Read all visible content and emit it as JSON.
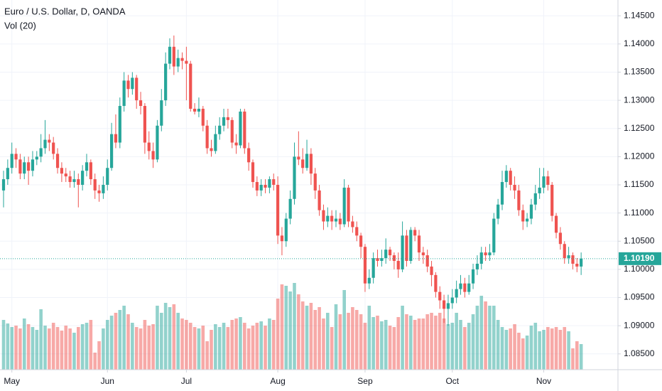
{
  "chart_data": {
    "type": "candlestick",
    "title": "Euro / U.S. Dollar, D, OANDA",
    "indicator": "Vol (20)",
    "up_color": "#26a69a",
    "down_color": "#ef5350",
    "ylim": [
      1.0822,
      1.1478
    ],
    "yticks": [
      {
        "value": 1.145,
        "label": "1.14500"
      },
      {
        "value": 1.14,
        "label": "1.14000"
      },
      {
        "value": 1.135,
        "label": "1.13500"
      },
      {
        "value": 1.13,
        "label": "1.13000"
      },
      {
        "value": 1.125,
        "label": "1.12500"
      },
      {
        "value": 1.12,
        "label": "1.12000"
      },
      {
        "value": 1.115,
        "label": "1.11500"
      },
      {
        "value": 1.11,
        "label": "1.11000"
      },
      {
        "value": 1.105,
        "label": "1.10500"
      },
      {
        "value": 1.1,
        "label": "1.10000"
      },
      {
        "value": 1.095,
        "label": "1.09500"
      },
      {
        "value": 1.09,
        "label": "1.09000"
      },
      {
        "value": 1.085,
        "label": "1.08500"
      }
    ],
    "xticks": [
      {
        "value": 2,
        "label": "May"
      },
      {
        "value": 25,
        "label": "Jun"
      },
      {
        "value": 44,
        "label": "Jul"
      },
      {
        "value": 66,
        "label": "Aug"
      },
      {
        "value": 87,
        "label": "Sep"
      },
      {
        "value": 108,
        "label": "Oct"
      },
      {
        "value": 130,
        "label": "Nov"
      }
    ],
    "grid": true,
    "last_price": {
      "value": 1.1019,
      "label": "1.10190"
    },
    "volume_lim": [
      0,
      130
    ],
    "ohlc": [
      [
        1.114,
        1.1175,
        1.111,
        1.116
      ],
      [
        1.116,
        1.1195,
        1.115,
        1.118
      ],
      [
        1.118,
        1.1225,
        1.117,
        1.1205
      ],
      [
        1.1205,
        1.1215,
        1.118,
        1.1195
      ],
      [
        1.1195,
        1.1205,
        1.116,
        1.117
      ],
      [
        1.117,
        1.12,
        1.116,
        1.119
      ],
      [
        1.119,
        1.12,
        1.115,
        1.1175
      ],
      [
        1.1175,
        1.121,
        1.1165,
        1.1195
      ],
      [
        1.1195,
        1.121,
        1.1185,
        1.12
      ],
      [
        1.12,
        1.124,
        1.119,
        1.1215
      ],
      [
        1.1215,
        1.1265,
        1.1205,
        1.123
      ],
      [
        1.123,
        1.124,
        1.121,
        1.1225
      ],
      [
        1.1225,
        1.1235,
        1.1195,
        1.1205
      ],
      [
        1.1205,
        1.1215,
        1.117,
        1.118
      ],
      [
        1.118,
        1.119,
        1.1155,
        1.117
      ],
      [
        1.117,
        1.118,
        1.1155,
        1.1165
      ],
      [
        1.1165,
        1.1175,
        1.1145,
        1.1155
      ],
      [
        1.1155,
        1.1175,
        1.1145,
        1.116
      ],
      [
        1.116,
        1.117,
        1.111,
        1.115
      ],
      [
        1.115,
        1.1185,
        1.114,
        1.1175
      ],
      [
        1.1175,
        1.1205,
        1.1165,
        1.119
      ],
      [
        1.119,
        1.1195,
        1.115,
        1.116
      ],
      [
        1.116,
        1.117,
        1.1125,
        1.114
      ],
      [
        1.114,
        1.115,
        1.112,
        1.1135
      ],
      [
        1.1135,
        1.1165,
        1.1125,
        1.115
      ],
      [
        1.115,
        1.1195,
        1.114,
        1.118
      ],
      [
        1.118,
        1.126,
        1.1175,
        1.124
      ],
      [
        1.124,
        1.1275,
        1.1215,
        1.1225
      ],
      [
        1.1225,
        1.1305,
        1.1215,
        1.129
      ],
      [
        1.129,
        1.135,
        1.128,
        1.1335
      ],
      [
        1.1335,
        1.1345,
        1.1305,
        1.132
      ],
      [
        1.132,
        1.135,
        1.131,
        1.134
      ],
      [
        1.134,
        1.1345,
        1.1285,
        1.13
      ],
      [
        1.13,
        1.1315,
        1.1275,
        1.129
      ],
      [
        1.129,
        1.1295,
        1.1205,
        1.1225
      ],
      [
        1.1225,
        1.1245,
        1.1195,
        1.121
      ],
      [
        1.121,
        1.1225,
        1.118,
        1.1195
      ],
      [
        1.1195,
        1.1265,
        1.119,
        1.1255
      ],
      [
        1.1255,
        1.132,
        1.1245,
        1.13
      ],
      [
        1.13,
        1.1385,
        1.129,
        1.1365
      ],
      [
        1.1365,
        1.141,
        1.1355,
        1.1395
      ],
      [
        1.1395,
        1.1415,
        1.1345,
        1.136
      ],
      [
        1.136,
        1.139,
        1.135,
        1.1375
      ],
      [
        1.1375,
        1.1385,
        1.1355,
        1.137
      ],
      [
        1.137,
        1.1395,
        1.13,
        1.1365
      ],
      [
        1.1365,
        1.137,
        1.128,
        1.1285
      ],
      [
        1.1285,
        1.1295,
        1.1275,
        1.128
      ],
      [
        1.128,
        1.1305,
        1.127,
        1.1285
      ],
      [
        1.1285,
        1.129,
        1.1245,
        1.1255
      ],
      [
        1.1255,
        1.1265,
        1.1205,
        1.1215
      ],
      [
        1.1215,
        1.123,
        1.12,
        1.121
      ],
      [
        1.121,
        1.1255,
        1.1205,
        1.124
      ],
      [
        1.124,
        1.127,
        1.123,
        1.1255
      ],
      [
        1.1255,
        1.1285,
        1.1245,
        1.127
      ],
      [
        1.127,
        1.1285,
        1.125,
        1.1265
      ],
      [
        1.1265,
        1.127,
        1.1215,
        1.1225
      ],
      [
        1.1225,
        1.124,
        1.1205,
        1.122
      ],
      [
        1.122,
        1.1285,
        1.1215,
        1.128
      ],
      [
        1.128,
        1.1285,
        1.1205,
        1.1215
      ],
      [
        1.1215,
        1.1225,
        1.1175,
        1.119
      ],
      [
        1.119,
        1.1195,
        1.1145,
        1.1155
      ],
      [
        1.1155,
        1.1165,
        1.113,
        1.114
      ],
      [
        1.114,
        1.116,
        1.113,
        1.115
      ],
      [
        1.115,
        1.116,
        1.1135,
        1.1145
      ],
      [
        1.1145,
        1.1165,
        1.1135,
        1.116
      ],
      [
        1.116,
        1.117,
        1.114,
        1.115
      ],
      [
        1.115,
        1.1165,
        1.1045,
        1.106
      ],
      [
        1.106,
        1.1075,
        1.1025,
        1.105
      ],
      [
        1.105,
        1.11,
        1.104,
        1.109
      ],
      [
        1.109,
        1.114,
        1.108,
        1.1125
      ],
      [
        1.1125,
        1.1225,
        1.1115,
        1.12
      ],
      [
        1.12,
        1.1245,
        1.1185,
        1.1195
      ],
      [
        1.1195,
        1.1215,
        1.117,
        1.118
      ],
      [
        1.118,
        1.123,
        1.1175,
        1.1205
      ],
      [
        1.1205,
        1.1215,
        1.115,
        1.117
      ],
      [
        1.117,
        1.118,
        1.1125,
        1.114
      ],
      [
        1.114,
        1.115,
        1.1095,
        1.1105
      ],
      [
        1.1105,
        1.1115,
        1.107,
        1.1085
      ],
      [
        1.1085,
        1.111,
        1.1075,
        1.1095
      ],
      [
        1.1095,
        1.1105,
        1.107,
        1.1085
      ],
      [
        1.1085,
        1.1105,
        1.1075,
        1.109
      ],
      [
        1.109,
        1.11,
        1.107,
        1.108
      ],
      [
        1.108,
        1.116,
        1.1075,
        1.1145
      ],
      [
        1.1145,
        1.115,
        1.1075,
        1.1085
      ],
      [
        1.1085,
        1.1095,
        1.1065,
        1.1075
      ],
      [
        1.1075,
        1.1085,
        1.105,
        1.106
      ],
      [
        1.106,
        1.1065,
        1.102,
        1.104
      ],
      [
        1.104,
        1.1045,
        1.096,
        1.0975
      ],
      [
        1.0975,
        1.1,
        1.0965,
        1.0985
      ],
      [
        1.0985,
        1.103,
        1.0975,
        1.102
      ],
      [
        1.102,
        1.1035,
        1.1005,
        1.1015
      ],
      [
        1.1015,
        1.1035,
        1.1005,
        1.102
      ],
      [
        1.102,
        1.1055,
        1.101,
        1.1035
      ],
      [
        1.1035,
        1.104,
        1.1015,
        1.1025
      ],
      [
        1.1025,
        1.103,
        1.1,
        1.1015
      ],
      [
        1.1015,
        1.103,
        1.0985,
        1.1
      ],
      [
        1.1,
        1.1085,
        1.0995,
        1.106
      ],
      [
        1.106,
        1.107,
        1.1005,
        1.1015
      ],
      [
        1.1015,
        1.1075,
        1.101,
        1.107
      ],
      [
        1.107,
        1.1075,
        1.105,
        1.106
      ],
      [
        1.106,
        1.107,
        1.1015,
        1.103
      ],
      [
        1.103,
        1.104,
        1.101,
        1.1025
      ],
      [
        1.1025,
        1.1035,
        1.0995,
        1.1005
      ],
      [
        1.1005,
        1.1015,
        1.097,
        1.099
      ],
      [
        1.099,
        1.0995,
        1.095,
        1.096
      ],
      [
        1.096,
        1.097,
        1.093,
        1.0945
      ],
      [
        1.0945,
        1.0955,
        1.0905,
        1.093
      ],
      [
        1.093,
        1.0955,
        1.09,
        1.094
      ],
      [
        1.094,
        1.0965,
        1.093,
        1.095
      ],
      [
        1.095,
        1.098,
        1.094,
        1.0965
      ],
      [
        1.0965,
        1.099,
        1.0955,
        1.0975
      ],
      [
        1.0975,
        1.0985,
        1.095,
        1.096
      ],
      [
        1.096,
        1.099,
        1.0955,
        1.0975
      ],
      [
        1.0975,
        1.101,
        1.0965,
        1.1
      ],
      [
        1.1,
        1.1025,
        1.099,
        1.101
      ],
      [
        1.101,
        1.104,
        1.1,
        1.103
      ],
      [
        1.103,
        1.104,
        1.1015,
        1.1025
      ],
      [
        1.1025,
        1.1045,
        1.1015,
        1.103
      ],
      [
        1.103,
        1.11,
        1.1025,
        1.109
      ],
      [
        1.109,
        1.1125,
        1.108,
        1.1115
      ],
      [
        1.1115,
        1.1175,
        1.1105,
        1.1155
      ],
      [
        1.1155,
        1.1185,
        1.1145,
        1.1175
      ],
      [
        1.1175,
        1.118,
        1.114,
        1.115
      ],
      [
        1.115,
        1.1165,
        1.1125,
        1.114
      ],
      [
        1.114,
        1.115,
        1.1095,
        1.1105
      ],
      [
        1.1105,
        1.1115,
        1.107,
        1.1085
      ],
      [
        1.1085,
        1.11,
        1.1075,
        1.109
      ],
      [
        1.109,
        1.1125,
        1.108,
        1.1115
      ],
      [
        1.1115,
        1.115,
        1.1105,
        1.1135
      ],
      [
        1.1135,
        1.118,
        1.1125,
        1.1145
      ],
      [
        1.1145,
        1.118,
        1.1135,
        1.1165
      ],
      [
        1.1165,
        1.1175,
        1.114,
        1.115
      ],
      [
        1.115,
        1.1155,
        1.1085,
        1.1095
      ],
      [
        1.1095,
        1.11,
        1.1055,
        1.1065
      ],
      [
        1.1065,
        1.1075,
        1.1035,
        1.1045
      ],
      [
        1.1045,
        1.105,
        1.101,
        1.102
      ],
      [
        1.102,
        1.104,
        1.101,
        1.1025
      ],
      [
        1.1025,
        1.103,
        1.1,
        1.101
      ],
      [
        1.101,
        1.102,
        1.0995,
        1.1005
      ],
      [
        1.1005,
        1.103,
        1.099,
        1.1019
      ]
    ],
    "volume": [
      70,
      65,
      60,
      62,
      58,
      72,
      64,
      60,
      56,
      85,
      62,
      58,
      66,
      60,
      55,
      62,
      58,
      52,
      60,
      64,
      66,
      70,
      24,
      40,
      58,
      70,
      76,
      80,
      84,
      90,
      78,
      66,
      60,
      58,
      70,
      62,
      64,
      90,
      80,
      94,
      88,
      92,
      80,
      72,
      70,
      66,
      60,
      58,
      62,
      40,
      56,
      64,
      60,
      66,
      60,
      70,
      72,
      74,
      66,
      58,
      62,
      66,
      68,
      62,
      72,
      70,
      100,
      120,
      118,
      110,
      122,
      106,
      96,
      90,
      94,
      84,
      88,
      72,
      80,
      60,
      92,
      78,
      112,
      80,
      88,
      84,
      78,
      66,
      90,
      74,
      76,
      68,
      70,
      62,
      60,
      74,
      90,
      78,
      76,
      70,
      72,
      72,
      78,
      80,
      76,
      80,
      72,
      64,
      66,
      80,
      70,
      60,
      66,
      78,
      90,
      104,
      96,
      90,
      90,
      70,
      60,
      56,
      58,
      64,
      52,
      44,
      48,
      62,
      66,
      54,
      56,
      60,
      58,
      60,
      56,
      60,
      54,
      30,
      40,
      36
    ]
  }
}
